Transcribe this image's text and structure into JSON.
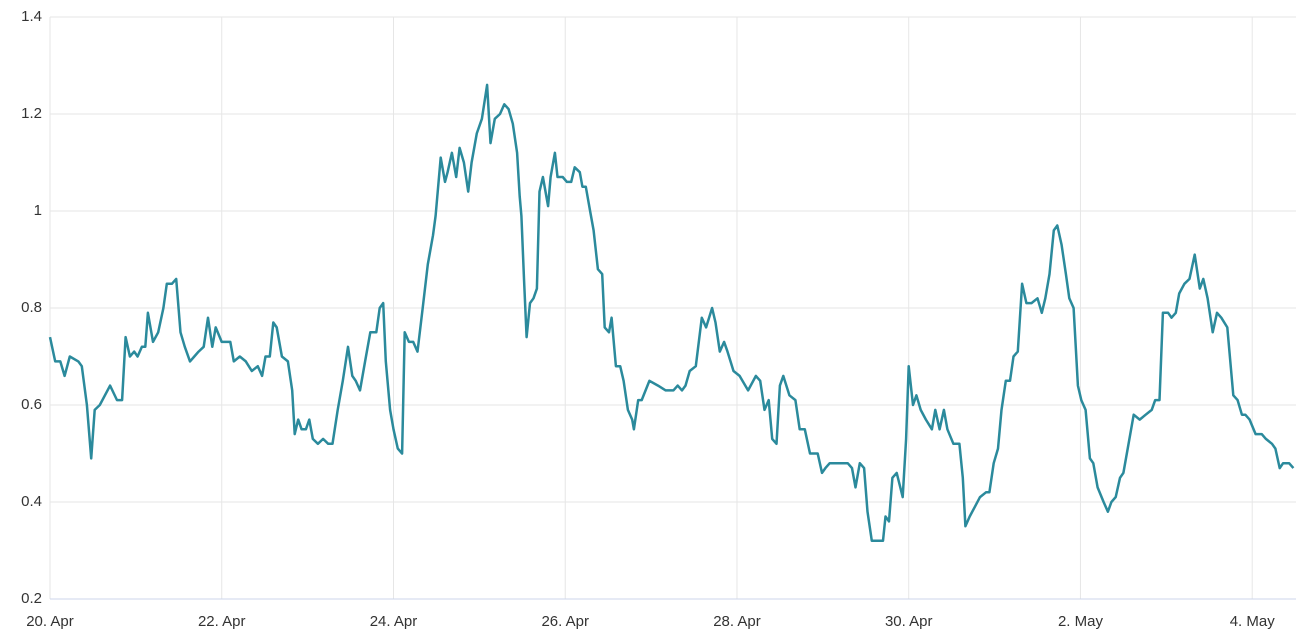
{
  "chart_data": {
    "type": "line",
    "x": [
      0,
      0.06,
      0.12,
      0.17,
      0.23,
      0.33,
      0.37,
      0.43,
      0.48,
      0.52,
      0.58,
      0.7,
      0.78,
      0.84,
      0.88,
      0.93,
      0.98,
      1.02,
      1.07,
      1.11,
      1.14,
      1.2,
      1.26,
      1.32,
      1.36,
      1.42,
      1.47,
      1.52,
      1.57,
      1.63,
      1.68,
      1.73,
      1.79,
      1.84,
      1.89,
      1.93,
      2.0,
      2.1,
      2.14,
      2.21,
      2.28,
      2.35,
      2.42,
      2.47,
      2.51,
      2.56,
      2.6,
      2.64,
      2.7,
      2.77,
      2.82,
      2.85,
      2.89,
      2.93,
      2.98,
      3.02,
      3.06,
      3.12,
      3.18,
      3.24,
      3.29,
      3.35,
      3.41,
      3.47,
      3.52,
      3.56,
      3.61,
      3.67,
      3.73,
      3.8,
      3.84,
      3.88,
      3.91,
      3.96,
      4.0,
      4.05,
      4.1,
      4.13,
      4.18,
      4.23,
      4.28,
      4.34,
      4.4,
      4.46,
      4.49,
      4.55,
      4.6,
      4.63,
      4.68,
      4.73,
      4.77,
      4.82,
      4.87,
      4.91,
      4.97,
      5.03,
      5.09,
      5.13,
      5.18,
      5.24,
      5.29,
      5.34,
      5.39,
      5.44,
      5.47,
      5.49,
      5.52,
      5.55,
      5.59,
      5.63,
      5.67,
      5.7,
      5.74,
      5.8,
      5.83,
      5.88,
      5.91,
      5.97,
      6.02,
      6.07,
      6.11,
      6.17,
      6.2,
      6.24,
      6.29,
      6.33,
      6.38,
      6.43,
      6.46,
      6.51,
      6.54,
      6.59,
      6.64,
      6.68,
      6.73,
      6.78,
      6.8,
      6.85,
      6.89,
      6.98,
      7.08,
      7.17,
      7.26,
      7.31,
      7.36,
      7.4,
      7.45,
      7.52,
      7.59,
      7.64,
      7.71,
      7.75,
      7.8,
      7.85,
      7.89,
      7.96,
      8.03,
      8.13,
      8.22,
      8.27,
      8.32,
      8.37,
      8.41,
      8.46,
      8.5,
      8.54,
      8.61,
      8.68,
      8.73,
      8.79,
      8.85,
      8.94,
      8.99,
      9.03,
      9.08,
      9.17,
      9.24,
      9.29,
      9.34,
      9.38,
      9.43,
      9.48,
      9.52,
      9.57,
      9.62,
      9.66,
      9.7,
      9.73,
      9.77,
      9.81,
      9.86,
      9.93,
      9.97,
      10.0,
      10.05,
      10.09,
      10.14,
      10.2,
      10.27,
      10.31,
      10.36,
      10.41,
      10.45,
      10.52,
      10.59,
      10.63,
      10.66,
      10.71,
      10.77,
      10.83,
      10.9,
      10.94,
      10.99,
      11.04,
      11.08,
      11.13,
      11.18,
      11.22,
      11.27,
      11.32,
      11.37,
      11.43,
      11.5,
      11.55,
      11.59,
      11.64,
      11.69,
      11.73,
      11.78,
      11.83,
      11.87,
      11.92,
      11.97,
      12.01,
      12.06,
      12.11,
      12.15,
      12.2,
      12.27,
      12.32,
      12.36,
      12.41,
      12.46,
      12.5,
      12.55,
      12.62,
      12.69,
      12.76,
      12.83,
      12.87,
      12.92,
      12.96,
      13.02,
      13.06,
      13.11,
      13.15,
      13.21,
      13.27,
      13.33,
      13.39,
      13.43,
      13.48,
      13.54,
      13.59,
      13.64,
      13.71,
      13.78,
      13.83,
      13.88,
      13.92,
      13.97,
      14.04,
      14.11,
      14.16,
      14.23,
      14.27,
      14.32,
      14.36,
      14.43,
      14.48
    ],
    "values": [
      0.74,
      0.69,
      0.69,
      0.66,
      0.7,
      0.69,
      0.68,
      0.6,
      0.49,
      0.59,
      0.6,
      0.64,
      0.61,
      0.61,
      0.74,
      0.7,
      0.71,
      0.7,
      0.72,
      0.72,
      0.79,
      0.73,
      0.75,
      0.8,
      0.85,
      0.85,
      0.86,
      0.75,
      0.72,
      0.69,
      0.7,
      0.71,
      0.72,
      0.78,
      0.72,
      0.76,
      0.73,
      0.73,
      0.69,
      0.7,
      0.69,
      0.67,
      0.68,
      0.66,
      0.7,
      0.7,
      0.77,
      0.76,
      0.7,
      0.69,
      0.63,
      0.54,
      0.57,
      0.55,
      0.55,
      0.57,
      0.53,
      0.52,
      0.53,
      0.52,
      0.52,
      0.59,
      0.65,
      0.72,
      0.66,
      0.65,
      0.63,
      0.69,
      0.75,
      0.75,
      0.8,
      0.81,
      0.69,
      0.59,
      0.55,
      0.51,
      0.5,
      0.75,
      0.73,
      0.73,
      0.71,
      0.8,
      0.89,
      0.95,
      0.99,
      1.11,
      1.06,
      1.08,
      1.12,
      1.07,
      1.13,
      1.1,
      1.04,
      1.1,
      1.16,
      1.19,
      1.26,
      1.14,
      1.19,
      1.2,
      1.22,
      1.21,
      1.18,
      1.12,
      1.03,
      0.99,
      0.86,
      0.74,
      0.81,
      0.82,
      0.84,
      1.04,
      1.07,
      1.01,
      1.07,
      1.12,
      1.07,
      1.07,
      1.06,
      1.06,
      1.09,
      1.08,
      1.05,
      1.05,
      1.0,
      0.96,
      0.88,
      0.87,
      0.76,
      0.75,
      0.78,
      0.68,
      0.68,
      0.65,
      0.59,
      0.57,
      0.55,
      0.61,
      0.61,
      0.65,
      0.64,
      0.63,
      0.63,
      0.64,
      0.63,
      0.64,
      0.67,
      0.68,
      0.78,
      0.76,
      0.8,
      0.77,
      0.71,
      0.73,
      0.71,
      0.67,
      0.66,
      0.63,
      0.66,
      0.65,
      0.59,
      0.61,
      0.53,
      0.52,
      0.64,
      0.66,
      0.62,
      0.61,
      0.55,
      0.55,
      0.5,
      0.5,
      0.46,
      0.47,
      0.48,
      0.48,
      0.48,
      0.48,
      0.47,
      0.43,
      0.48,
      0.47,
      0.38,
      0.32,
      0.32,
      0.32,
      0.32,
      0.37,
      0.36,
      0.45,
      0.46,
      0.41,
      0.53,
      0.68,
      0.6,
      0.62,
      0.59,
      0.57,
      0.55,
      0.59,
      0.55,
      0.59,
      0.55,
      0.52,
      0.52,
      0.45,
      0.35,
      0.37,
      0.39,
      0.41,
      0.42,
      0.42,
      0.48,
      0.51,
      0.59,
      0.65,
      0.65,
      0.7,
      0.71,
      0.85,
      0.81,
      0.81,
      0.82,
      0.79,
      0.82,
      0.87,
      0.96,
      0.97,
      0.93,
      0.87,
      0.82,
      0.8,
      0.64,
      0.61,
      0.59,
      0.49,
      0.48,
      0.43,
      0.4,
      0.38,
      0.4,
      0.41,
      0.45,
      0.46,
      0.51,
      0.58,
      0.57,
      0.58,
      0.59,
      0.61,
      0.61,
      0.79,
      0.79,
      0.78,
      0.79,
      0.83,
      0.85,
      0.86,
      0.91,
      0.84,
      0.86,
      0.82,
      0.75,
      0.79,
      0.78,
      0.76,
      0.62,
      0.61,
      0.58,
      0.58,
      0.57,
      0.54,
      0.54,
      0.53,
      0.52,
      0.51,
      0.47,
      0.48,
      0.48,
      0.47
    ],
    "color": "#2b8a9c",
    "xlim": [
      0,
      14.51
    ],
    "xticks": [
      {
        "value": 0,
        "label": "20. Apr"
      },
      {
        "value": 2,
        "label": "22. Apr"
      },
      {
        "value": 4,
        "label": "24. Apr"
      },
      {
        "value": 6,
        "label": "26. Apr"
      },
      {
        "value": 8,
        "label": "28. Apr"
      },
      {
        "value": 10,
        "label": "30. Apr"
      },
      {
        "value": 12,
        "label": "2. May"
      },
      {
        "value": 14,
        "label": "4. May"
      }
    ],
    "ylim": [
      0.2,
      1.4
    ],
    "yticks": [
      0.2,
      0.4,
      0.6,
      0.8,
      1,
      1.2,
      1.4
    ],
    "grid": true
  }
}
